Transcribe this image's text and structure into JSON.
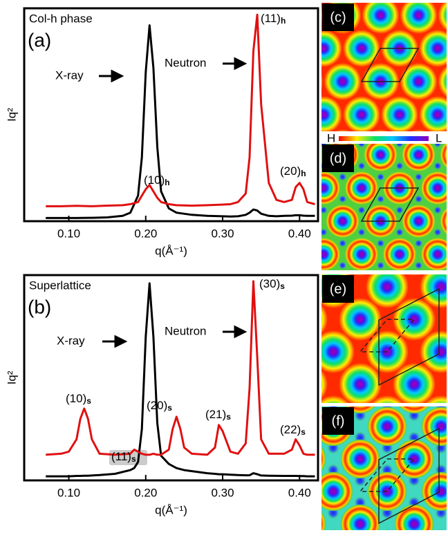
{
  "chart_data": [
    {
      "type": "line",
      "title": "Col-h phase",
      "panel_label": "(a)",
      "x_label": "q(Å⁻¹)",
      "y_label": "Iq²",
      "x": [
        0.07,
        0.09,
        0.11,
        0.13,
        0.15,
        0.17,
        0.18,
        0.19,
        0.195,
        0.2,
        0.205,
        0.21,
        0.215,
        0.22,
        0.23,
        0.24,
        0.26,
        0.28,
        0.3,
        0.31,
        0.32,
        0.33,
        0.335,
        0.34,
        0.345,
        0.35,
        0.36,
        0.37,
        0.38,
        0.39,
        0.395,
        0.4,
        0.405,
        0.41,
        0.42
      ],
      "series": [
        {
          "name": "X-ray",
          "color": "#000000",
          "values": [
            1.5,
            1.5,
            1.5,
            1.6,
            1.8,
            2.5,
            4,
            12,
            30,
            70,
            92,
            72,
            35,
            14,
            6,
            4,
            3,
            2.5,
            2.3,
            2.2,
            2.3,
            3,
            4,
            5.5,
            5,
            3.5,
            2.5,
            2.3,
            2.5,
            2.6,
            2.8,
            2.8,
            2.6,
            2.5,
            2.5
          ]
        },
        {
          "name": "Neutron",
          "color": "#e01010",
          "values": [
            7,
            7,
            7.2,
            7,
            7.3,
            7.5,
            8,
            9,
            12,
            15,
            17,
            14,
            11,
            9,
            8,
            7.5,
            7.3,
            7.5,
            7.8,
            8,
            9,
            13,
            30,
            80,
            97,
            55,
            18,
            10,
            9,
            10,
            16,
            18,
            15,
            9,
            8
          ]
        }
      ],
      "xlim": [
        0.042,
        0.424
      ],
      "ylim": [
        0,
        100
      ],
      "xticks": [
        {
          "value": 0.1,
          "label": "0.10"
        },
        {
          "value": 0.2,
          "label": "0.20"
        },
        {
          "value": 0.3,
          "label": "0.30"
        },
        {
          "value": 0.4,
          "label": "0.40"
        }
      ],
      "annotations": [
        {
          "text": "(11)",
          "sub": "h"
        },
        {
          "text": "(10)",
          "sub": "h"
        },
        {
          "text": "(20)",
          "sub": "h"
        }
      ]
    },
    {
      "type": "line",
      "title": "Superlattice",
      "panel_label": "(b)",
      "x_label": "q(Å⁻¹)",
      "y_label": "Iq²",
      "x": [
        0.07,
        0.09,
        0.1,
        0.11,
        0.115,
        0.12,
        0.125,
        0.13,
        0.14,
        0.16,
        0.18,
        0.185,
        0.19,
        0.195,
        0.2,
        0.205,
        0.21,
        0.215,
        0.22,
        0.23,
        0.235,
        0.24,
        0.245,
        0.25,
        0.26,
        0.28,
        0.29,
        0.295,
        0.3,
        0.31,
        0.32,
        0.33,
        0.335,
        0.34,
        0.345,
        0.35,
        0.36,
        0.38,
        0.39,
        0.395,
        0.4,
        0.405,
        0.41,
        0.42
      ],
      "series": [
        {
          "name": "X-ray",
          "color": "#000000",
          "values": [
            2,
            2,
            2,
            2.2,
            2.2,
            2.3,
            2.3,
            2.4,
            2.6,
            3.2,
            5,
            6,
            9,
            25,
            70,
            96,
            70,
            28,
            12,
            8,
            7,
            6,
            5.5,
            5,
            4.5,
            3.5,
            3.2,
            3,
            3,
            2.8,
            2.6,
            2.5,
            2.5,
            3.5,
            3,
            2.4,
            2.3,
            2.2,
            2.2,
            2.2,
            2.1,
            2.1,
            2,
            2
          ]
        },
        {
          "name": "Neutron",
          "color": "#e01010",
          "values": [
            12.5,
            13,
            14,
            20,
            30,
            35,
            30,
            20,
            13,
            12.5,
            13,
            15,
            14,
            13,
            12.5,
            12.5,
            13,
            12.5,
            12.5,
            15,
            25,
            31,
            25,
            16,
            13,
            12.5,
            16,
            27,
            24,
            14,
            13,
            18,
            45,
            97,
            60,
            20,
            13,
            13,
            15,
            20,
            17,
            13,
            12.5,
            12.5
          ]
        }
      ],
      "xlim": [
        0.042,
        0.424
      ],
      "ylim": [
        0,
        100
      ],
      "xticks": [
        {
          "value": 0.1,
          "label": "0.10"
        },
        {
          "value": 0.2,
          "label": "0.20"
        },
        {
          "value": 0.3,
          "label": "0.30"
        },
        {
          "value": 0.4,
          "label": "0.40"
        }
      ],
      "annotations": [
        {
          "text": "(30)",
          "sub": "s"
        },
        {
          "text": "(10)",
          "sub": "s"
        },
        {
          "text": "(11)",
          "sub": "s"
        },
        {
          "text": "(20)",
          "sub": "s"
        },
        {
          "text": "(21)",
          "sub": "s"
        },
        {
          "text": "(22)",
          "sub": "s"
        }
      ]
    }
  ],
  "maps": {
    "labels": [
      "(c)",
      "(d)",
      "(e)",
      "(f)"
    ],
    "colorbar": {
      "high": "H",
      "low": "L"
    }
  }
}
